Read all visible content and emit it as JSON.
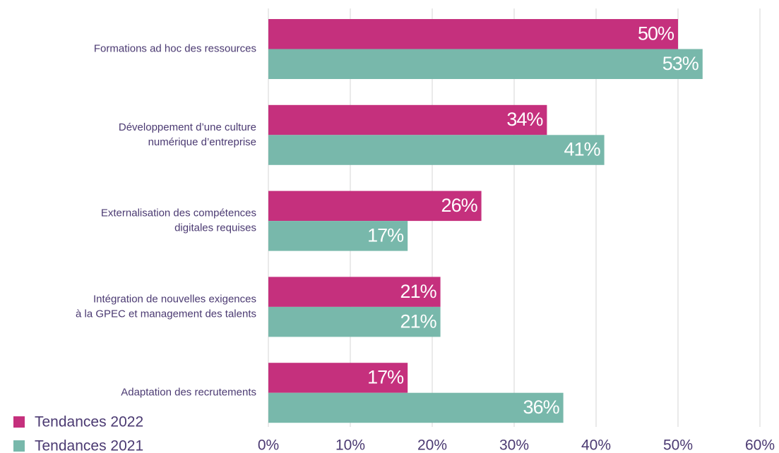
{
  "chart_data": {
    "type": "hbar",
    "categories": [
      [
        "Formations ad hoc des ressources"
      ],
      [
        "Développement d’une culture",
        "numérique d’entreprise"
      ],
      [
        "Externalisation des compétences",
        "digitales requises"
      ],
      [
        "Intégration de nouvelles exigences",
        "à la GPEC et management des talents"
      ],
      [
        "Adaptation des recrutements"
      ]
    ],
    "series": [
      {
        "name": "Tendances 2022",
        "color": "#c5307d",
        "values": [
          50,
          34,
          26,
          21,
          17
        ],
        "value_labels": [
          "50%",
          "34%",
          "26%",
          "21%",
          "17%"
        ]
      },
      {
        "name": "Tendances 2021",
        "color": "#78b8ab",
        "values": [
          53,
          41,
          17,
          21,
          36
        ],
        "value_labels": [
          "53%",
          "41%",
          "17%",
          "21%",
          "36%"
        ]
      }
    ],
    "xlim": [
      0,
      60
    ],
    "xticks": [
      {
        "value": 0,
        "label": "0%"
      },
      {
        "value": 10,
        "label": "10%"
      },
      {
        "value": 20,
        "label": "20%"
      },
      {
        "value": 30,
        "label": "30%"
      },
      {
        "value": 40,
        "label": "40%"
      },
      {
        "value": 50,
        "label": "50%"
      },
      {
        "value": 60,
        "label": "60%"
      }
    ],
    "grid": true,
    "legend": "bottom-left"
  }
}
